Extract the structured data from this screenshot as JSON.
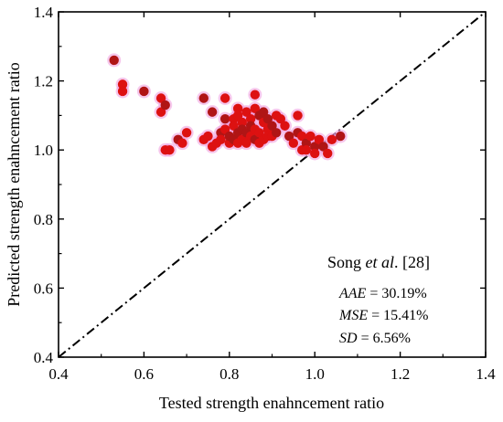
{
  "chart_data": {
    "type": "scatter",
    "xlabel": "Tested strength enahncement ratio",
    "ylabel": "Predicted strength enahncement ratio",
    "xlim": [
      0.4,
      1.4
    ],
    "ylim": [
      0.4,
      1.4
    ],
    "x_ticks": [
      "0.4",
      "0.6",
      "0.8",
      "1.0",
      "1.2",
      "1.4"
    ],
    "y_ticks": [
      "0.4",
      "0.6",
      "0.8",
      "1.0",
      "1.2",
      "1.4"
    ],
    "grid": false,
    "reference_line": {
      "style": "dash-dot",
      "from": [
        0.4,
        0.4
      ],
      "to": [
        1.4,
        1.4
      ]
    },
    "annotation": {
      "source_prefix": "Song ",
      "source_italic": "et al",
      "source_suffix": ". [28]",
      "stats": [
        {
          "label": "AAE",
          "value": " = 30.19%"
        },
        {
          "label": "MSE",
          "value": " = 15.41%"
        },
        {
          "label": "SD",
          "value": " = 6.56%"
        }
      ]
    },
    "colors": {
      "marker": "#dd1111",
      "marker_dark": "#b01515",
      "halo": "#ee99dd"
    },
    "points": [
      [
        0.53,
        1.26
      ],
      [
        0.55,
        1.19
      ],
      [
        0.55,
        1.17
      ],
      [
        0.6,
        1.17
      ],
      [
        0.64,
        1.15
      ],
      [
        0.64,
        1.11
      ],
      [
        0.65,
        1.13
      ],
      [
        0.65,
        1.0
      ],
      [
        0.66,
        1.0
      ],
      [
        0.68,
        1.03
      ],
      [
        0.69,
        1.02
      ],
      [
        0.7,
        1.05
      ],
      [
        0.74,
        1.15
      ],
      [
        0.74,
        1.03
      ],
      [
        0.75,
        1.04
      ],
      [
        0.76,
        1.11
      ],
      [
        0.76,
        1.01
      ],
      [
        0.77,
        1.02
      ],
      [
        0.78,
        1.05
      ],
      [
        0.78,
        1.03
      ],
      [
        0.79,
        1.15
      ],
      [
        0.79,
        1.09
      ],
      [
        0.79,
        1.06
      ],
      [
        0.8,
        1.02
      ],
      [
        0.8,
        1.04
      ],
      [
        0.81,
        1.09
      ],
      [
        0.81,
        1.07
      ],
      [
        0.81,
        1.03
      ],
      [
        0.82,
        1.12
      ],
      [
        0.82,
        1.1
      ],
      [
        0.82,
        1.05
      ],
      [
        0.82,
        1.02
      ],
      [
        0.83,
        1.08
      ],
      [
        0.83,
        1.06
      ],
      [
        0.83,
        1.03
      ],
      [
        0.84,
        1.11
      ],
      [
        0.84,
        1.05
      ],
      [
        0.84,
        1.02
      ],
      [
        0.85,
        1.09
      ],
      [
        0.85,
        1.07
      ],
      [
        0.85,
        1.04
      ],
      [
        0.86,
        1.12
      ],
      [
        0.86,
        1.03
      ],
      [
        0.86,
        1.16
      ],
      [
        0.86,
        1.06
      ],
      [
        0.87,
        1.1
      ],
      [
        0.87,
        1.05
      ],
      [
        0.87,
        1.02
      ],
      [
        0.88,
        1.11
      ],
      [
        0.88,
        1.08
      ],
      [
        0.88,
        1.03
      ],
      [
        0.89,
        1.09
      ],
      [
        0.89,
        1.06
      ],
      [
        0.89,
        1.04
      ],
      [
        0.9,
        1.07
      ],
      [
        0.9,
        1.04
      ],
      [
        0.91,
        1.1
      ],
      [
        0.91,
        1.05
      ],
      [
        0.92,
        1.09
      ],
      [
        0.93,
        1.07
      ],
      [
        0.94,
        1.04
      ],
      [
        0.95,
        1.02
      ],
      [
        0.96,
        1.1
      ],
      [
        0.96,
        1.05
      ],
      [
        0.97,
        1.0
      ],
      [
        0.97,
        1.04
      ],
      [
        0.98,
        1.02
      ],
      [
        0.98,
        1.0
      ],
      [
        0.99,
        1.04
      ],
      [
        1.0,
        1.01
      ],
      [
        1.0,
        0.99
      ],
      [
        1.01,
        1.03
      ],
      [
        1.02,
        1.01
      ],
      [
        1.03,
        0.99
      ],
      [
        1.04,
        1.03
      ],
      [
        1.06,
        1.04
      ]
    ]
  }
}
